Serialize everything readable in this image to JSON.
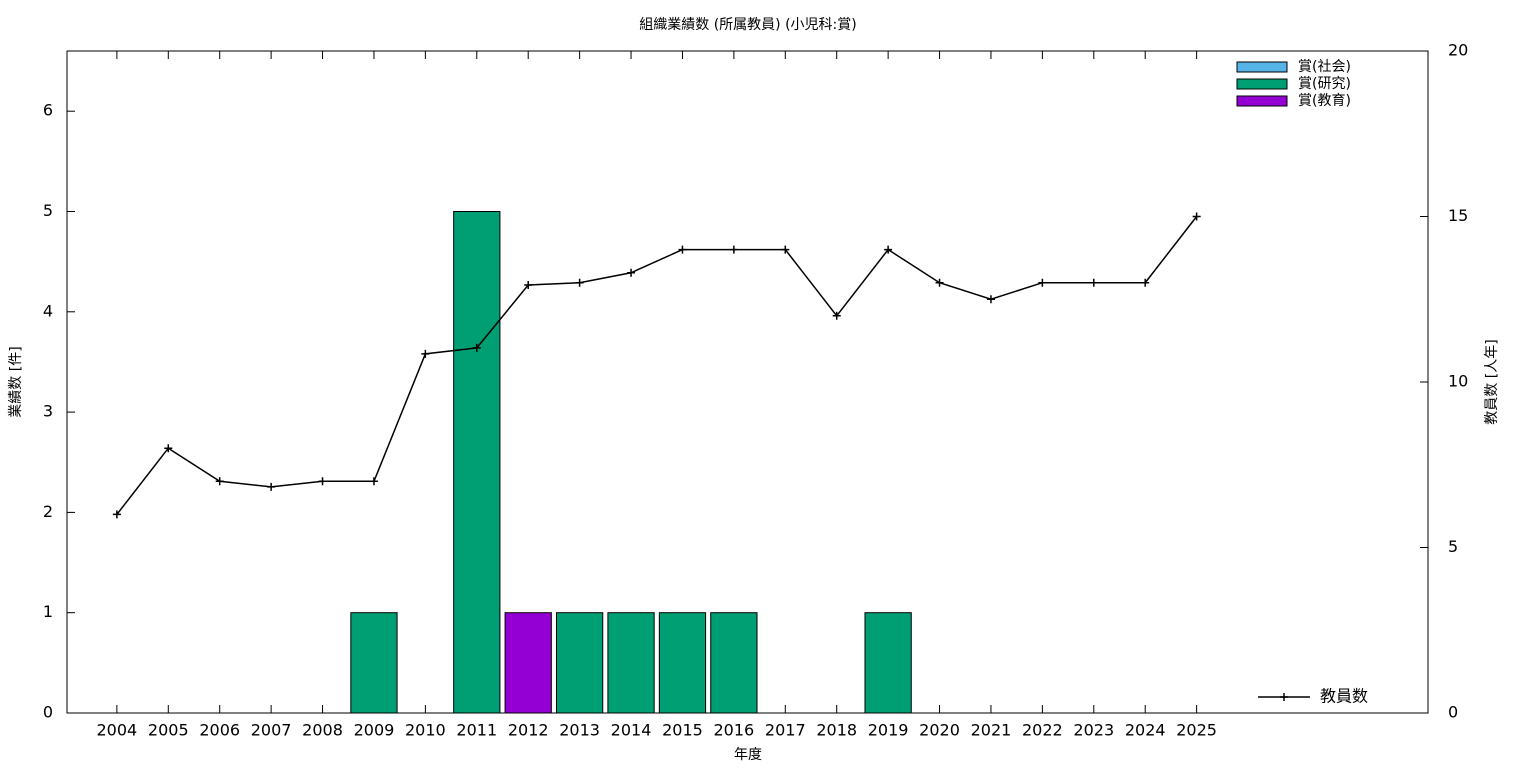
{
  "chart_data": {
    "type": "bar",
    "title": "組織業績数 (所属教員) (小児科:賞)",
    "x_label": "年度",
    "y_label": "業績数 [件]",
    "y2_label": "教員数 [人年]",
    "x": [
      2004,
      2005,
      2006,
      2007,
      2008,
      2009,
      2010,
      2011,
      2012,
      2013,
      2014,
      2015,
      2016,
      2017,
      2018,
      2019,
      2020,
      2021,
      2022,
      2023,
      2024,
      2025
    ],
    "xlim": [
      2003.03,
      2029.5
    ],
    "ylim": [
      0,
      6.6
    ],
    "yticks": [
      0,
      1,
      2,
      3,
      4,
      5,
      6
    ],
    "y2lim": [
      0,
      20
    ],
    "y2ticks": [
      0,
      5,
      10,
      15,
      20
    ],
    "stacked": true,
    "series": [
      {
        "name": "賞(社会)",
        "color": "#56b4e9",
        "values": [
          0,
          0,
          0,
          0,
          0,
          0,
          0,
          0,
          0,
          0,
          0,
          0,
          0,
          0,
          0,
          0,
          0,
          0,
          0,
          0,
          0,
          0
        ]
      },
      {
        "name": "賞(研究)",
        "color": "#009e73",
        "values": [
          0,
          0,
          0,
          0,
          0,
          1,
          0,
          5,
          0,
          1,
          1,
          1,
          1,
          0,
          0,
          1,
          0,
          0,
          0,
          0,
          0,
          0
        ]
      },
      {
        "name": "賞(教育)",
        "color": "#9400d3",
        "values": [
          0,
          0,
          0,
          0,
          0,
          0,
          0,
          0,
          1,
          0,
          0,
          0,
          0,
          0,
          0,
          0,
          0,
          0,
          0,
          0,
          0,
          0
        ]
      },
      {
        "name": "教員数",
        "type": "line",
        "axis": "y2",
        "color": "#000000",
        "values": [
          6,
          8,
          7,
          6.83,
          7,
          7,
          10.85,
          11.03,
          12.93,
          13,
          13.3,
          14,
          14,
          14,
          12,
          14,
          13,
          12.5,
          13,
          13,
          13,
          15
        ]
      }
    ]
  }
}
